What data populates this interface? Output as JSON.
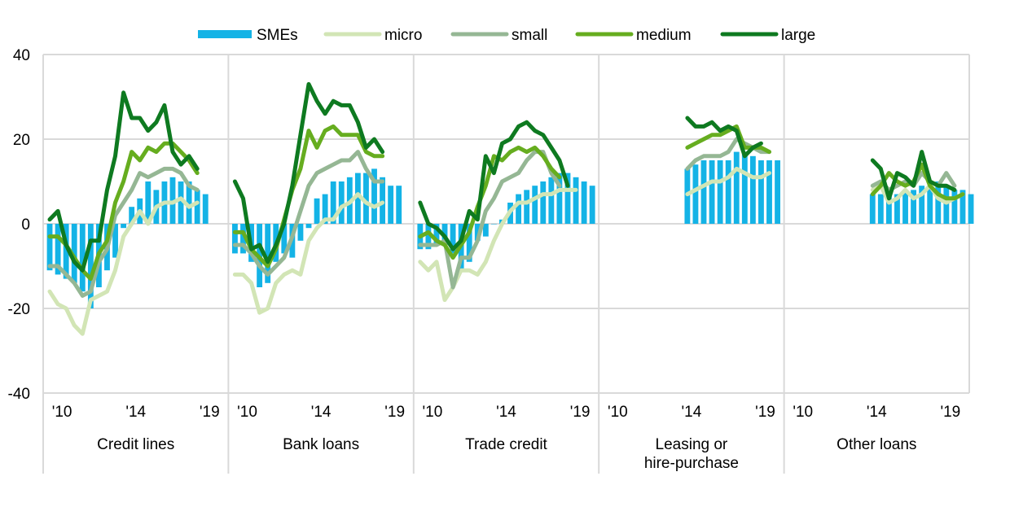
{
  "chart_data": {
    "type": "bar",
    "ylim": [
      -40,
      40
    ],
    "yticks": [
      40,
      20,
      0,
      -20,
      -40
    ],
    "grid": true,
    "legend_placement": "top",
    "x_tick_labels": [
      "'10",
      "'14",
      "'19"
    ],
    "colors": {
      "SMEs": "#14b3e6",
      "micro": "#d2e5b5",
      "small": "#95b794",
      "medium": "#66ad1f",
      "large": "#0e7a20",
      "grid": "#d9d9d9"
    },
    "series": [
      {
        "name": "SMEs",
        "kind": "bar"
      },
      {
        "name": "micro",
        "kind": "line"
      },
      {
        "name": "small",
        "kind": "line"
      },
      {
        "name": "medium",
        "kind": "line"
      },
      {
        "name": "large",
        "kind": "line"
      }
    ],
    "panels": [
      {
        "label_lines": [
          "Credit lines"
        ],
        "start_index": 0,
        "SMEs": [
          -11,
          -12,
          -13,
          -14,
          -16,
          -20,
          -15,
          -11,
          -8,
          -1,
          4,
          6,
          10,
          8,
          10,
          11,
          10,
          10,
          8,
          7
        ],
        "micro": [
          -16,
          -19,
          -20,
          -24,
          -26,
          -18,
          -17,
          -16,
          -11,
          -3,
          0,
          3,
          0,
          4,
          5,
          5,
          6,
          4,
          5
        ],
        "small": [
          -10,
          -10,
          -12,
          -14,
          -17,
          -16,
          -9,
          -6,
          2,
          5,
          8,
          12,
          11,
          12,
          13,
          13,
          12,
          9,
          8
        ],
        "medium": [
          -3,
          -3,
          -5,
          -8,
          -11,
          -13,
          -7,
          -4,
          5,
          10,
          17,
          15,
          18,
          17,
          19,
          19,
          17,
          15,
          12
        ],
        "large": [
          1,
          3,
          -5,
          -9,
          -11,
          -4,
          -4,
          8,
          16,
          31,
          25,
          25,
          22,
          24,
          28,
          17,
          14,
          16,
          13
        ]
      },
      {
        "label_lines": [
          "Bank loans"
        ],
        "start_index": 0,
        "SMEs": [
          -7,
          -7,
          -9,
          -15,
          -14,
          -9,
          -7,
          -8,
          -4,
          -1,
          6,
          7,
          10,
          10,
          11,
          12,
          12,
          13,
          11,
          9,
          9
        ],
        "micro": [
          -12,
          -12,
          -14,
          -21,
          -20,
          -14,
          -12,
          -11,
          -12,
          -4,
          -1,
          1,
          1,
          4,
          5,
          7,
          5,
          4,
          5
        ],
        "small": [
          -5,
          -5,
          -7,
          -10,
          -12,
          -10,
          -8,
          -3,
          3,
          9,
          12,
          13,
          14,
          15,
          15,
          17,
          13,
          10,
          10
        ],
        "medium": [
          -2,
          -2,
          -6,
          -8,
          -10,
          -6,
          1,
          8,
          13,
          22,
          18,
          22,
          23,
          21,
          21,
          21,
          17,
          16,
          16
        ],
        "large": [
          10,
          6,
          -6,
          -5,
          -9,
          -5,
          0,
          9,
          21,
          33,
          29,
          26,
          29,
          28,
          28,
          24,
          18,
          20,
          17
        ]
      },
      {
        "label_lines": [
          "Trade credit"
        ],
        "start_index": 0,
        "SMEs": [
          -6,
          -6,
          -5,
          -5,
          -7,
          -11,
          -9,
          -4,
          -3,
          0,
          1,
          5,
          7,
          8,
          9,
          10,
          11,
          12,
          12,
          11,
          10,
          9
        ],
        "micro": [
          -9,
          -11,
          -9,
          -18,
          -15,
          -11,
          -11,
          -12,
          -9,
          -4,
          0,
          3,
          5,
          5,
          6,
          7,
          7,
          8,
          8,
          8
        ],
        "small": [
          -5,
          -5,
          -5,
          -4,
          -15,
          -8,
          -8,
          -4,
          3,
          6,
          10,
          11,
          12,
          15,
          17,
          17,
          12,
          9
        ],
        "medium": [
          -3,
          -2,
          -4,
          -5,
          -8,
          -5,
          -2,
          4,
          9,
          16,
          15,
          17,
          18,
          17,
          18,
          16,
          13,
          11
        ],
        "large": [
          5,
          0,
          -1,
          -3,
          -6,
          -4,
          3,
          1,
          16,
          12,
          19,
          20,
          23,
          24,
          22,
          21,
          18,
          15,
          9
        ]
      },
      {
        "label_lines": [
          "Leasing or",
          "hire-purchase"
        ],
        "start_index": 10,
        "SMEs": [
          13,
          14,
          15,
          15,
          15,
          15,
          17,
          17,
          16,
          15,
          15,
          15
        ],
        "micro": [
          7,
          8,
          9,
          10,
          10,
          11,
          13,
          12,
          11,
          11,
          12
        ],
        "small": [
          13,
          15,
          16,
          16,
          16,
          17,
          20,
          19,
          18,
          17,
          17
        ],
        "medium": [
          18,
          19,
          20,
          21,
          21,
          22,
          23,
          18,
          18,
          18,
          17
        ],
        "large": [
          25,
          23,
          23,
          24,
          22,
          23,
          22,
          16,
          18,
          19
        ]
      },
      {
        "label_lines": [
          "Other loans"
        ],
        "start_index": 10,
        "SMEs": [
          7,
          7,
          7,
          7,
          8,
          8,
          9,
          9,
          10,
          9,
          8,
          8,
          7
        ],
        "micro": [
          8,
          9,
          5,
          6,
          8,
          6,
          7,
          9,
          6,
          5,
          6,
          7
        ],
        "small": [
          9,
          10,
          8,
          9,
          10,
          9,
          12,
          10,
          9,
          12,
          9
        ],
        "medium": [
          7,
          9,
          12,
          10,
          9,
          10,
          14,
          9,
          7,
          6,
          6,
          7
        ],
        "large": [
          15,
          13,
          6,
          12,
          11,
          9,
          17,
          10,
          9,
          9,
          8
        ]
      }
    ]
  }
}
